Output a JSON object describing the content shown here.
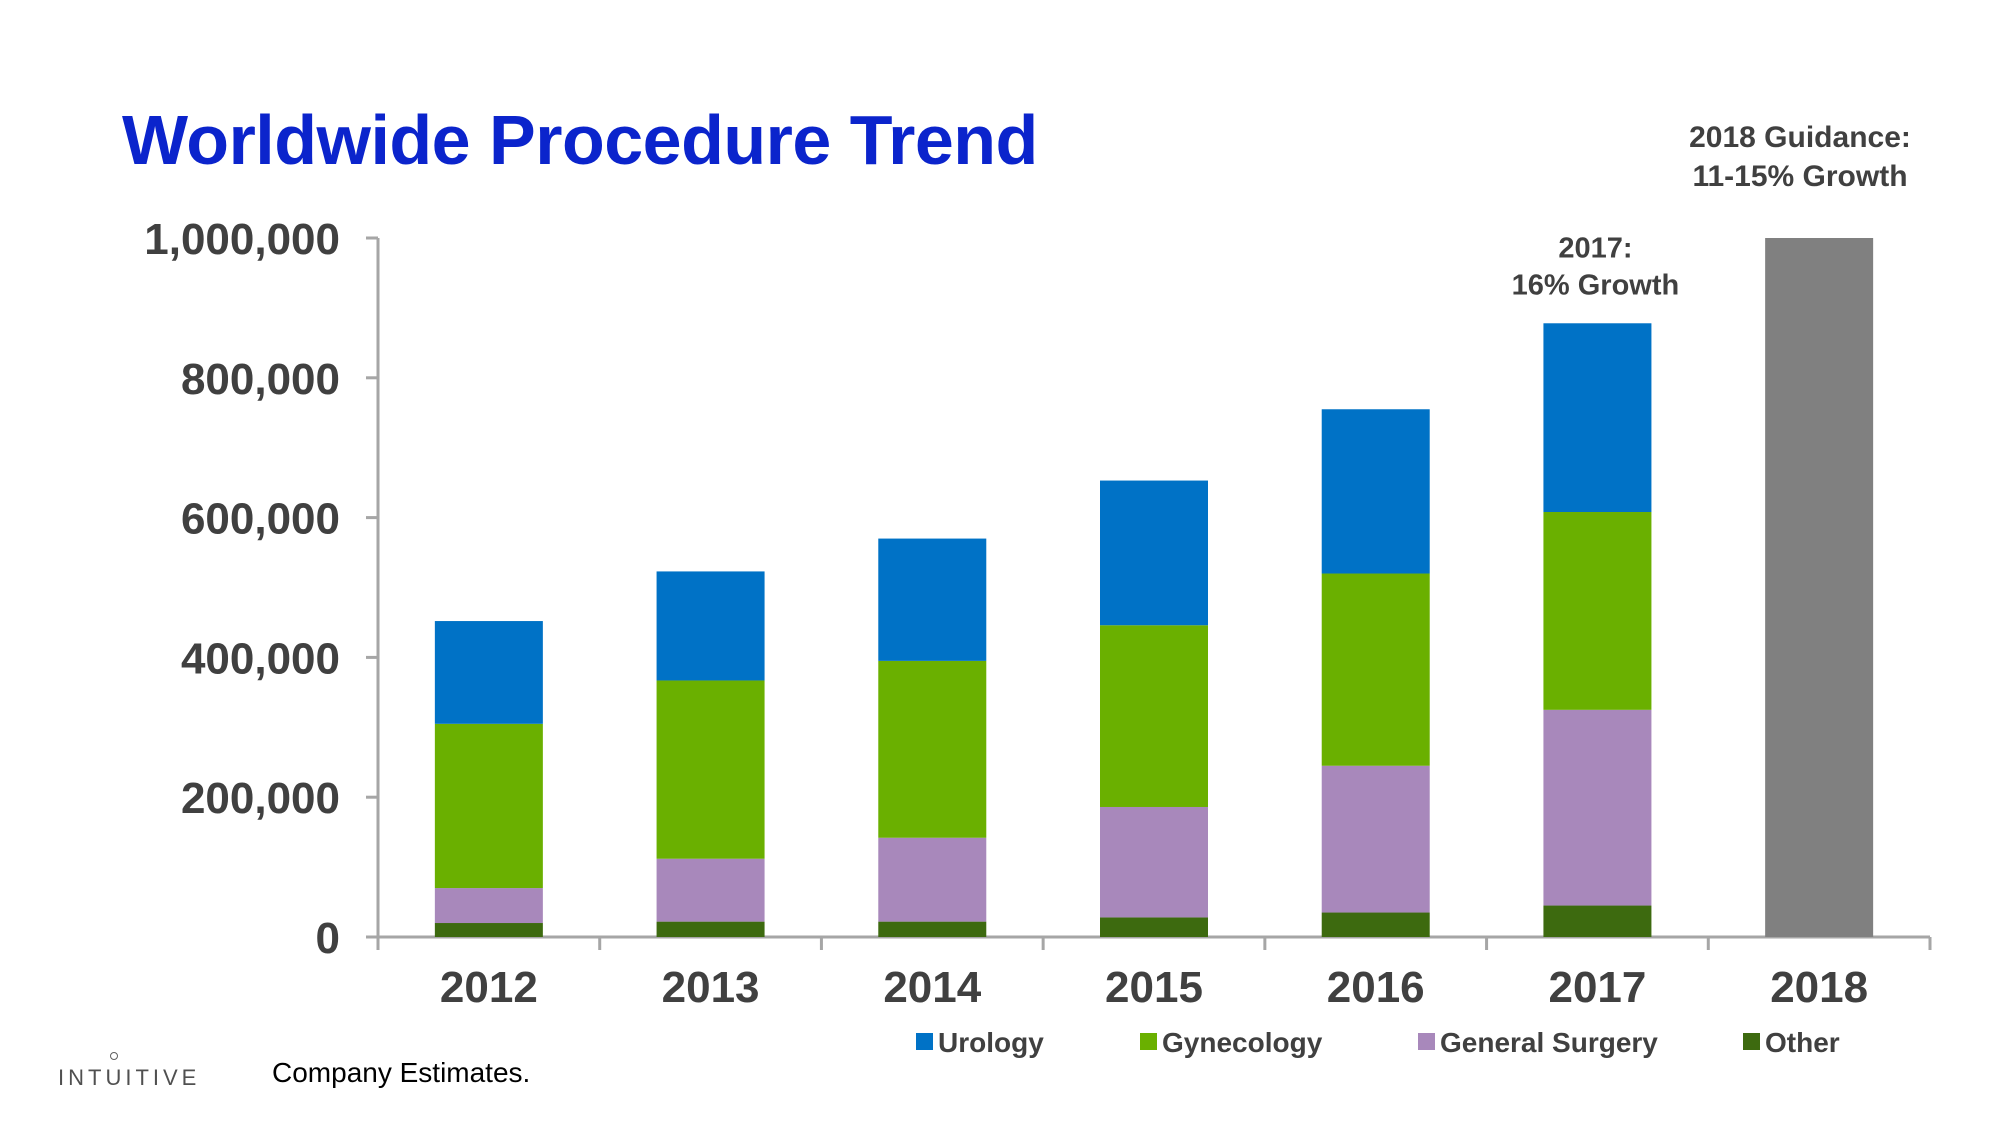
{
  "slide": {
    "title": "Worldwide Procedure Trend",
    "guidance_line1": "2018 Guidance:",
    "guidance_line2": "11-15% Growth",
    "footer_note": "Company Estimates.",
    "logo_text": "INTUITIVE"
  },
  "chart_data": {
    "type": "bar",
    "stacked": true,
    "title": "Worldwide Procedure Trend",
    "xlabel": "",
    "ylabel": "",
    "ylim": [
      0,
      1000000
    ],
    "yticks": [
      0,
      200000,
      400000,
      600000,
      800000,
      1000000
    ],
    "ytick_labels": [
      "0",
      "200,000",
      "400,000",
      "600,000",
      "800,000",
      "1,000,000"
    ],
    "categories": [
      "2012",
      "2013",
      "2014",
      "2015",
      "2016",
      "2017",
      "2018"
    ],
    "series": [
      {
        "name": "Other",
        "color": "#3d6a0f",
        "values": [
          20000,
          22000,
          22000,
          28000,
          35000,
          45000,
          null
        ]
      },
      {
        "name": "General Surgery",
        "color": "#a888bb",
        "values": [
          50000,
          90000,
          120000,
          158000,
          210000,
          280000,
          null
        ]
      },
      {
        "name": "Gynecology",
        "color": "#6ab000",
        "values": [
          235000,
          255000,
          253000,
          260000,
          275000,
          283000,
          null
        ]
      },
      {
        "name": "Urology",
        "color": "#0072c6",
        "values": [
          147000,
          156000,
          175000,
          207000,
          235000,
          270000,
          null
        ]
      }
    ],
    "guidance_bar": {
      "category": "2018",
      "value": 1000000,
      "color": "#808080"
    },
    "legend": {
      "placement": "bottom-right",
      "items": [
        {
          "label": "Urology",
          "color": "#0072c6"
        },
        {
          "label": "Gynecology",
          "color": "#6ab000"
        },
        {
          "label": "General Surgery",
          "color": "#a888bb"
        },
        {
          "label": "Other",
          "color": "#3d6a0f"
        }
      ]
    },
    "annotations": [
      {
        "category": "2017",
        "line1": "2017:",
        "line2": "16% Growth"
      }
    ],
    "colors": {
      "axis": "#a6a6a6",
      "tick_text": "#404040",
      "annotation_text": "#404040"
    }
  }
}
